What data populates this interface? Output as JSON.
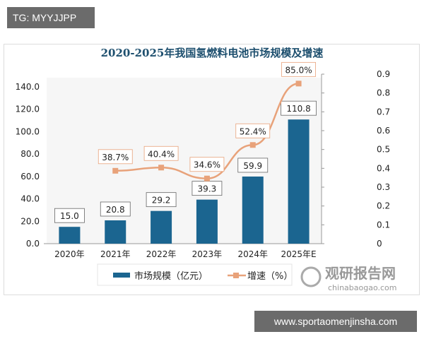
{
  "header_tag": "TG: MYYJJPP",
  "footer_site": "www.sportaomenjinsha.com",
  "watermark": {
    "cn": "观研报告网",
    "en": "chinabaogao.com"
  },
  "chart_data": {
    "type": "bar+line",
    "title": "2020-2025年我国氢燃料电池市场规模及增速",
    "categories": [
      "2020年",
      "2021年",
      "2022年",
      "2023年",
      "2024年",
      "2025年E"
    ],
    "series": [
      {
        "name": "市场规模（亿元）",
        "type": "bar",
        "axis": "left",
        "values": [
          15.0,
          20.8,
          29.2,
          39.3,
          59.9,
          110.8
        ],
        "labels": [
          "15.0",
          "20.8",
          "29.2",
          "39.3",
          "59.9",
          "110.8"
        ],
        "color": "#1b6590"
      },
      {
        "name": "增速（%）",
        "type": "line",
        "axis": "right",
        "values": [
          null,
          0.387,
          0.404,
          0.346,
          0.524,
          0.85
        ],
        "labels": [
          "",
          "38.7%",
          "40.4%",
          "34.6%",
          "52.4%",
          "85.0%"
        ],
        "color": "#e8a27a"
      }
    ],
    "left_axis": {
      "ylim": [
        0,
        150
      ],
      "ticks": [
        "0.0",
        "20.0",
        "40.0",
        "60.0",
        "80.0",
        "100.0",
        "120.0",
        "140.0"
      ]
    },
    "right_axis": {
      "ylim": [
        0,
        0.9
      ],
      "ticks": [
        "0",
        "0.1",
        "0.2",
        "0.3",
        "0.4",
        "0.5",
        "0.6",
        "0.7",
        "0.8",
        "0.9"
      ]
    },
    "legend": "bottom",
    "grid": false
  }
}
